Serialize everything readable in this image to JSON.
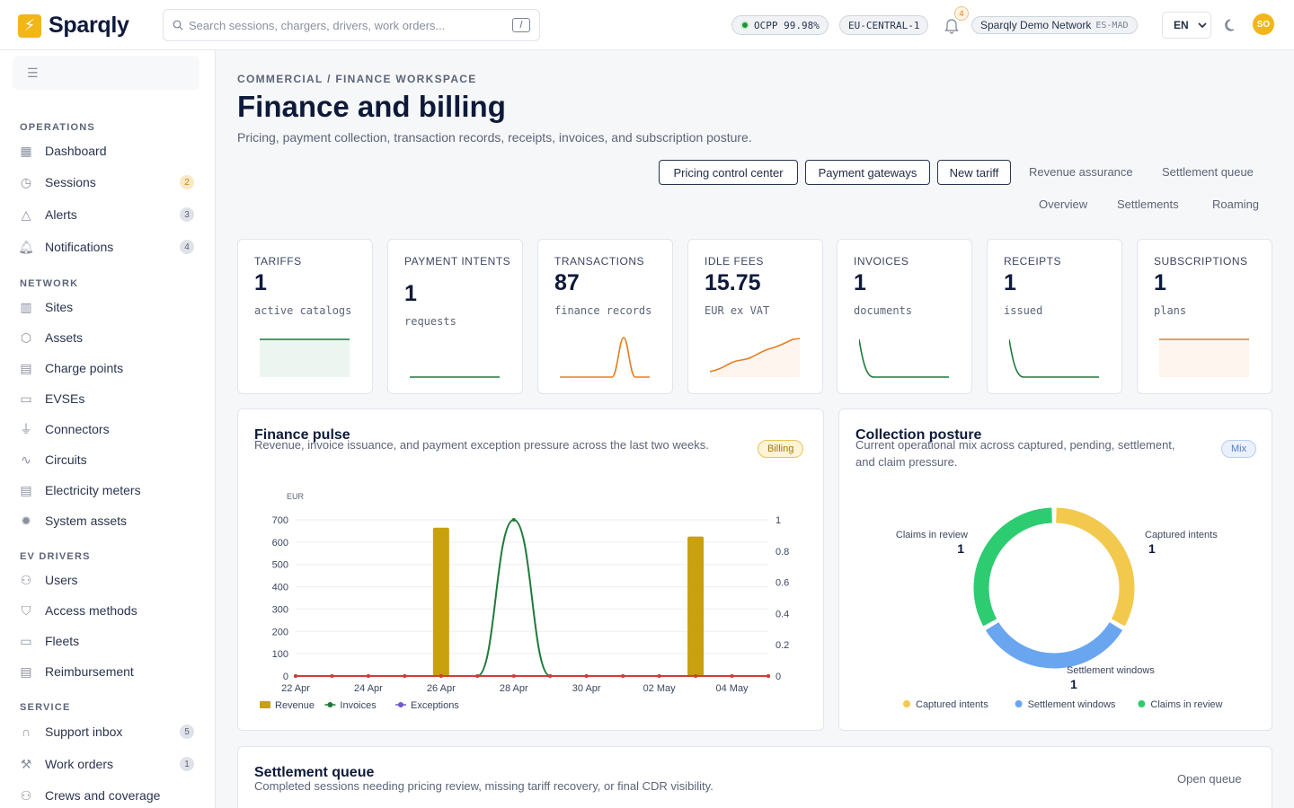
{
  "brand": {
    "name": "Sparqly"
  },
  "search": {
    "placeholder": "Search sessions, chargers, drivers, work orders...",
    "shortcut": "/"
  },
  "topbar": {
    "status_label": "OCPP 99.98%",
    "region": "EU-CENTRAL-1",
    "notifications_count": "4",
    "network_name": "Sparqly Demo Network",
    "network_code": "ES-MAD",
    "language": "EN",
    "avatar_initials": "SO"
  },
  "sidebar": {
    "sections": [
      {
        "label": "OPERATIONS",
        "items": [
          {
            "label": "Dashboard",
            "icon": "grid-icon"
          },
          {
            "label": "Sessions",
            "icon": "clock-icon",
            "badge": "2",
            "badge_tone": "warn"
          },
          {
            "label": "Alerts",
            "icon": "alert-triangle-icon",
            "badge": "3",
            "badge_tone": "gray"
          },
          {
            "label": "Notifications",
            "icon": "bell-icon",
            "badge": "4",
            "badge_tone": "gray"
          }
        ]
      },
      {
        "label": "NETWORK",
        "items": [
          {
            "label": "Sites",
            "icon": "map-icon"
          },
          {
            "label": "Assets",
            "icon": "box-icon"
          },
          {
            "label": "Charge points",
            "icon": "fuel-icon"
          },
          {
            "label": "EVSEs",
            "icon": "battery-icon"
          },
          {
            "label": "Connectors",
            "icon": "plug-icon"
          },
          {
            "label": "Circuits",
            "icon": "pulse-icon"
          },
          {
            "label": "Electricity meters",
            "icon": "meter-icon"
          },
          {
            "label": "System assets",
            "icon": "sun-icon"
          }
        ]
      },
      {
        "label": "EV DRIVERS",
        "items": [
          {
            "label": "Users",
            "icon": "users-icon"
          },
          {
            "label": "Access methods",
            "icon": "shield-icon"
          },
          {
            "label": "Fleets",
            "icon": "battery-icon"
          },
          {
            "label": "Reimbursement",
            "icon": "receipt-icon"
          }
        ]
      },
      {
        "label": "SERVICE",
        "items": [
          {
            "label": "Support inbox",
            "icon": "headset-icon",
            "badge": "5",
            "badge_tone": "gray"
          },
          {
            "label": "Work orders",
            "icon": "wrench-icon",
            "badge": "1",
            "badge_tone": "gray"
          },
          {
            "label": "Crews and coverage",
            "icon": "users-icon"
          }
        ]
      }
    ]
  },
  "page": {
    "breadcrumb": "COMMERCIAL / FINANCE WORKSPACE",
    "title": "Finance and billing",
    "subtitle": "Pricing, payment collection, transaction records, receipts, invoices, and subscription posture.",
    "actions": [
      "Pricing control center",
      "Payment gateways",
      "New tariff"
    ],
    "links_row1": [
      "Revenue assurance",
      "Settlement queue"
    ],
    "links_row2": [
      "Overview",
      "Settlements",
      "Roaming"
    ]
  },
  "kpis": [
    {
      "label": "TARIFFS",
      "value": "1",
      "unit": "active catalogs",
      "color": "#1f7a3a",
      "trend": "flat"
    },
    {
      "label": "PAYMENT INTENTS",
      "value": "1",
      "unit": "requests",
      "color": "#1f7a3a",
      "trend": "flat-low"
    },
    {
      "label": "TRANSACTIONS",
      "value": "87",
      "unit": "finance records",
      "color": "#e67e22",
      "trend": "spike"
    },
    {
      "label": "IDLE FEES",
      "value": "15.75",
      "unit": "EUR ex VAT",
      "color": "#e67e22",
      "trend": "rise"
    },
    {
      "label": "INVOICES",
      "value": "1",
      "unit": "documents",
      "color": "#1f7a3a",
      "trend": "decay"
    },
    {
      "label": "RECEIPTS",
      "value": "1",
      "unit": "issued",
      "color": "#1f7a3a",
      "trend": "decay"
    },
    {
      "label": "SUBSCRIPTIONS",
      "value": "1",
      "unit": "plans",
      "color": "#e67e22",
      "trend": "flat"
    }
  ],
  "finance_pulse": {
    "title": "Finance pulse",
    "description": "Revenue, invoice issuance, and payment exception pressure across the last two weeks.",
    "tag": "Billing"
  },
  "collection_posture": {
    "title": "Collection posture",
    "description": "Current operational mix across captured, pending, settlement, and claim pressure.",
    "tag": "Mix"
  },
  "settlement_queue": {
    "title": "Settlement queue",
    "description": "Completed sessions needing pricing review, missing tariff recovery, or final CDR visibility.",
    "action": "Open queue"
  },
  "chart_data": [
    {
      "type": "bar",
      "title": "Finance pulse",
      "ylabel": "EUR",
      "ylim": [
        0,
        700
      ],
      "y_ticks": [
        0,
        100,
        200,
        300,
        400,
        500,
        600,
        700
      ],
      "y2lim": [
        0,
        1
      ],
      "y2_ticks": [
        0,
        0.2,
        0.4,
        0.6,
        0.8,
        1
      ],
      "x_tick_labels": [
        "22 Apr",
        "24 Apr",
        "26 Apr",
        "28 Apr",
        "30 Apr",
        "02 May",
        "04 May"
      ],
      "x": [
        "22 Apr",
        "23 Apr",
        "24 Apr",
        "25 Apr",
        "26 Apr",
        "27 Apr",
        "28 Apr",
        "29 Apr",
        "30 Apr",
        "01 May",
        "02 May",
        "03 May",
        "04 May",
        "05 May"
      ],
      "series": [
        {
          "name": "Revenue",
          "type": "bar",
          "axis": "left",
          "color": "#c9a00e",
          "values": [
            0,
            0,
            0,
            0,
            665,
            0,
            0,
            0,
            0,
            0,
            0,
            625,
            0,
            0
          ]
        },
        {
          "name": "Invoices",
          "type": "line",
          "axis": "right",
          "color": "#1f7a3a",
          "values": [
            0,
            0,
            0,
            0,
            0,
            0,
            1,
            0,
            0,
            0,
            0,
            0,
            0,
            0
          ]
        },
        {
          "name": "Exceptions",
          "type": "line",
          "axis": "right",
          "color": "#d33b3b",
          "values": [
            0,
            0,
            0,
            0,
            0,
            0,
            0,
            0,
            0,
            0,
            0,
            0,
            0,
            0
          ]
        }
      ],
      "legend": "bottom-left"
    },
    {
      "type": "pie",
      "title": "Collection posture",
      "donut": true,
      "slices": [
        {
          "name": "Captured intents",
          "value": 1,
          "color": "#f2c94c"
        },
        {
          "name": "Settlement windows",
          "value": 1,
          "color": "#6aa6f0"
        },
        {
          "name": "Claims in review",
          "value": 1,
          "color": "#2ecc71"
        }
      ],
      "legend": "bottom"
    }
  ]
}
